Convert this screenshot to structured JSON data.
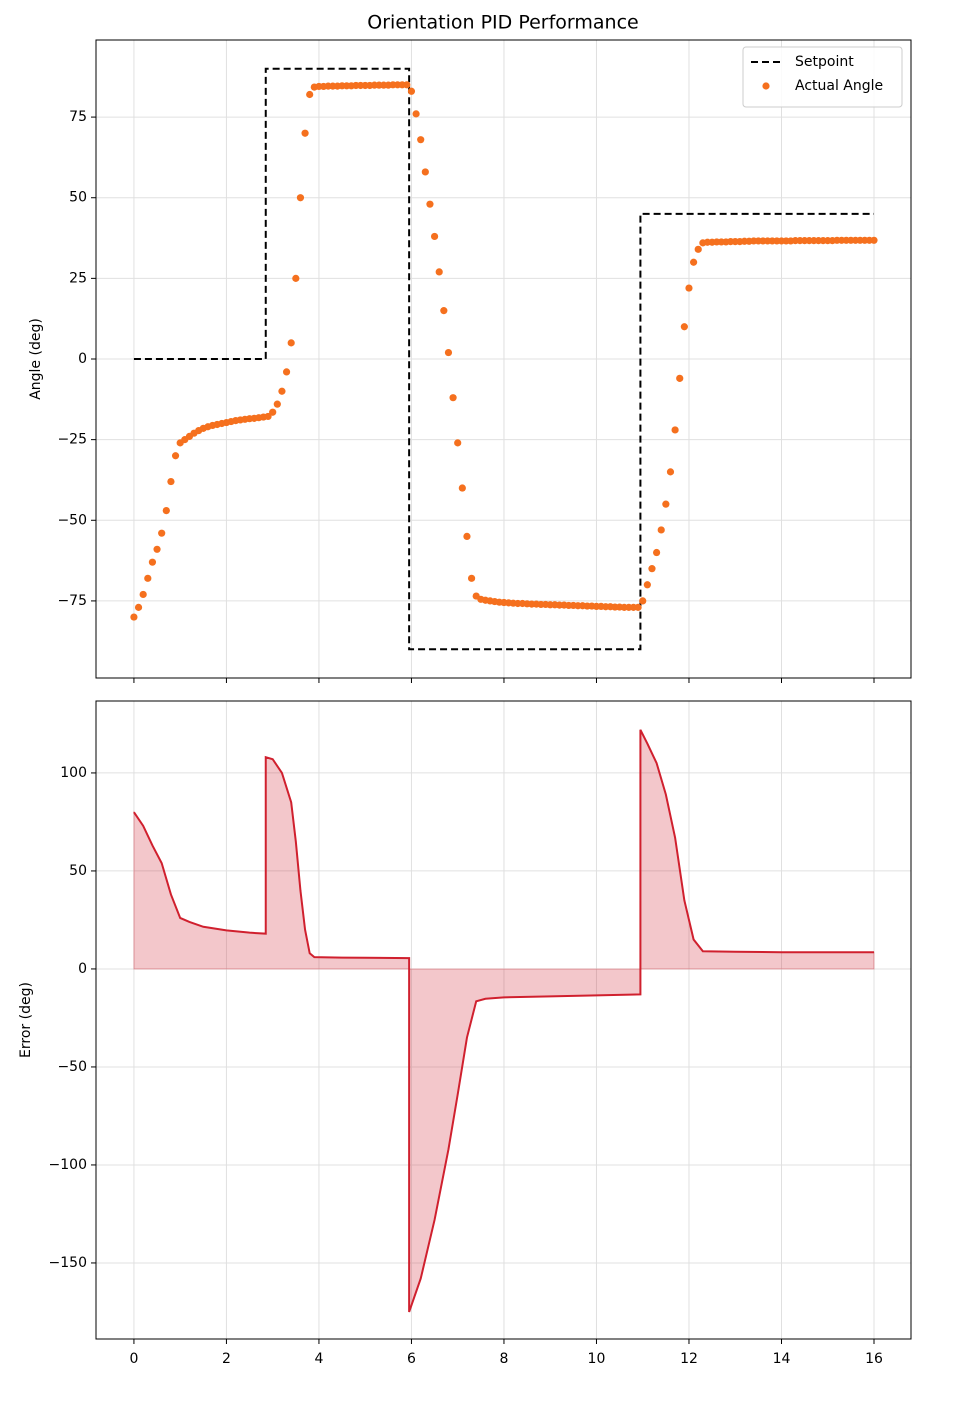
{
  "chart_data": [
    {
      "type": "line",
      "title": "Orientation PID Performance",
      "ylabel": "Angle (deg)",
      "xlim": [
        -0.82,
        16.8
      ],
      "ylim": [
        -98.9,
        98.9
      ],
      "xticks": [
        0,
        2,
        4,
        6,
        8,
        10,
        12,
        14,
        16
      ],
      "yticks": [
        {
          "value": -75,
          "label": "−75"
        },
        {
          "value": -50,
          "label": "−50"
        },
        {
          "value": -25,
          "label": "−25"
        },
        0,
        25,
        50,
        75
      ],
      "grid": true,
      "legend": "upper right",
      "series": [
        {
          "name": "Setpoint",
          "type": "line",
          "dashed": true,
          "color": "#000000",
          "x": [
            0,
            2.85,
            2.85,
            5.95,
            5.95,
            10.95,
            10.95,
            16
          ],
          "values": [
            0,
            0,
            90,
            90,
            -90,
            -90,
            45,
            45
          ]
        },
        {
          "name": "Actual Angle",
          "type": "scatter",
          "color": "#f5701e",
          "x": [
            0,
            0.1,
            0.2,
            0.3,
            0.4,
            0.5,
            0.6,
            0.7,
            0.8,
            0.9,
            1,
            1.1,
            1.2,
            1.3,
            1.4,
            1.5,
            1.6,
            1.7,
            1.8,
            1.9,
            2,
            2.1,
            2.2,
            2.3,
            2.4,
            2.5,
            2.6,
            2.7,
            2.8,
            2.9,
            3,
            3.1,
            3.2,
            3.3,
            3.4,
            3.5,
            3.6,
            3.7,
            3.8,
            3.9,
            4,
            4.1,
            4.2,
            4.3,
            4.4,
            4.5,
            4.6,
            4.7,
            4.8,
            4.9,
            5,
            5.1,
            5.2,
            5.3,
            5.4,
            5.5,
            5.6,
            5.7,
            5.8,
            5.9,
            6,
            6.1,
            6.2,
            6.3,
            6.4,
            6.5,
            6.6,
            6.7,
            6.8,
            6.9,
            7,
            7.1,
            7.2,
            7.3,
            7.4,
            7.5,
            7.6,
            7.7,
            7.8,
            7.9,
            8,
            8.1,
            8.2,
            8.3,
            8.4,
            8.5,
            8.6,
            8.7,
            8.8,
            8.9,
            9,
            9.1,
            9.2,
            9.3,
            9.4,
            9.5,
            9.6,
            9.7,
            9.8,
            9.9,
            10,
            10.1,
            10.2,
            10.3,
            10.4,
            10.5,
            10.6,
            10.7,
            10.8,
            10.9,
            11,
            11.1,
            11.2,
            11.3,
            11.4,
            11.5,
            11.6,
            11.7,
            11.8,
            11.9,
            12,
            12.1,
            12.2,
            12.3,
            12.4,
            12.5,
            12.6,
            12.7,
            12.8,
            12.9,
            13,
            13.1,
            13.2,
            13.3,
            13.4,
            13.5,
            13.6,
            13.7,
            13.8,
            13.9,
            14,
            14.1,
            14.2,
            14.3,
            14.4,
            14.5,
            14.6,
            14.7,
            14.8,
            14.9,
            15,
            15.1,
            15.2,
            15.3,
            15.4,
            15.5,
            15.6,
            15.7,
            15.8,
            15.9,
            16
          ],
          "values": [
            -80,
            -77,
            -73,
            -68,
            -63,
            -59,
            -54,
            -47,
            -38,
            -30,
            -26,
            -25,
            -24,
            -23,
            -22.2,
            -21.5,
            -21,
            -20.6,
            -20.3,
            -20,
            -19.7,
            -19.4,
            -19.1,
            -18.9,
            -18.7,
            -18.5,
            -18.4,
            -18.2,
            -18,
            -17.8,
            -16.5,
            -14,
            -10,
            -4,
            5,
            25,
            50,
            70,
            82,
            84.3,
            84.5,
            84.5,
            84.6,
            84.6,
            84.6,
            84.7,
            84.7,
            84.7,
            84.8,
            84.8,
            84.8,
            84.8,
            84.9,
            84.9,
            84.9,
            84.9,
            85,
            85,
            85,
            85,
            83,
            76,
            68,
            58,
            48,
            38,
            27,
            15,
            2,
            -12,
            -26,
            -40,
            -55,
            -68,
            -73.5,
            -74.5,
            -74.8,
            -75,
            -75.2,
            -75.4,
            -75.5,
            -75.6,
            -75.7,
            -75.8,
            -75.8,
            -75.9,
            -76,
            -76,
            -76.1,
            -76.1,
            -76.2,
            -76.2,
            -76.3,
            -76.3,
            -76.4,
            -76.4,
            -76.5,
            -76.5,
            -76.6,
            -76.6,
            -76.7,
            -76.7,
            -76.8,
            -76.8,
            -76.9,
            -76.9,
            -77,
            -77,
            -77,
            -77,
            -75,
            -70,
            -65,
            -60,
            -53,
            -45,
            -35,
            -22,
            -6,
            10,
            22,
            30,
            34,
            36,
            36.2,
            36.2,
            36.3,
            36.3,
            36.3,
            36.4,
            36.4,
            36.4,
            36.5,
            36.5,
            36.6,
            36.6,
            36.6,
            36.6,
            36.6,
            36.6,
            36.6,
            36.6,
            36.6,
            36.7,
            36.7,
            36.7,
            36.7,
            36.7,
            36.7,
            36.7,
            36.7,
            36.7,
            36.8,
            36.8,
            36.8,
            36.8,
            36.8,
            36.8,
            36.8,
            36.8,
            36.8
          ]
        }
      ]
    },
    {
      "type": "area",
      "ylabel": "Error (deg)",
      "xlim": [
        -0.82,
        16.8
      ],
      "ylim": [
        -188.8,
        136.7
      ],
      "xticks": [
        0,
        2,
        4,
        6,
        8,
        10,
        12,
        14,
        16
      ],
      "yticks": [
        {
          "value": -150,
          "label": "−150"
        },
        {
          "value": -100,
          "label": "−100"
        },
        {
          "value": -50,
          "label": "−50"
        },
        0,
        50,
        100
      ],
      "grid": true,
      "color": "#d0202e",
      "x": [
        0,
        0.2,
        0.4,
        0.6,
        0.8,
        1.0,
        1.2,
        1.5,
        2.0,
        2.5,
        2.85,
        2.85,
        3.0,
        3.2,
        3.4,
        3.5,
        3.6,
        3.7,
        3.8,
        3.9,
        4.5,
        5.0,
        5.95,
        5.95,
        6.2,
        6.5,
        6.8,
        7.0,
        7.2,
        7.4,
        7.6,
        8.0,
        9.0,
        10.0,
        10.95,
        10.95,
        11.1,
        11.3,
        11.5,
        11.7,
        11.9,
        12.1,
        12.3,
        13,
        14,
        15,
        16
      ],
      "values": [
        80,
        73,
        63,
        54,
        38,
        26,
        24,
        21.5,
        19.7,
        18.5,
        18,
        108,
        107,
        100,
        85,
        65,
        40,
        20,
        8,
        6,
        5.8,
        5.7,
        5.5,
        -175,
        -158,
        -128,
        -92,
        -64,
        -35,
        -16.5,
        -15.2,
        -14.5,
        -14,
        -13.5,
        -13,
        122,
        115,
        105,
        89,
        67,
        35,
        15,
        9,
        8.8,
        8.5,
        8.5,
        8.5
      ]
    }
  ]
}
